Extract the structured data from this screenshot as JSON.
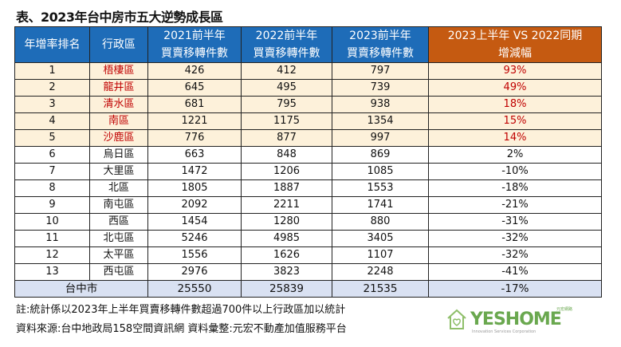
{
  "title": "表、2023年台中房市五大逆勢成長區",
  "headers": {
    "rank": "年增率排名",
    "district": "行政區",
    "y2021": [
      "2021前半年",
      "買賣移轉件數"
    ],
    "y2022": [
      "2022前半年",
      "買賣移轉件數"
    ],
    "y2023": [
      "2023前半年",
      "買賣移轉件數"
    ],
    "change": [
      "2023上半年 VS 2022同期",
      "增減幅"
    ]
  },
  "rows": [
    [
      "1",
      "梧棲區",
      "426",
      "412",
      "797",
      "93%"
    ],
    [
      "2",
      "龍井區",
      "645",
      "495",
      "739",
      "49%"
    ],
    [
      "3",
      "清水區",
      "681",
      "795",
      "938",
      "18%"
    ],
    [
      "4",
      "南區",
      "1221",
      "1175",
      "1354",
      "15%"
    ],
    [
      "5",
      "沙鹿區",
      "776",
      "877",
      "997",
      "14%"
    ],
    [
      "6",
      "烏日區",
      "663",
      "848",
      "869",
      "2%"
    ],
    [
      "7",
      "大里區",
      "1472",
      "1206",
      "1085",
      "-10%"
    ],
    [
      "8",
      "北區",
      "1805",
      "1887",
      "1553",
      "-18%"
    ],
    [
      "9",
      "南屯區",
      "2092",
      "2211",
      "1741",
      "-21%"
    ],
    [
      "10",
      "西區",
      "1454",
      "1280",
      "880",
      "-31%"
    ],
    [
      "11",
      "北屯區",
      "5246",
      "4985",
      "3405",
      "-32%"
    ],
    [
      "12",
      "太平區",
      "1556",
      "1626",
      "1107",
      "-32%"
    ],
    [
      "13",
      "西屯區",
      "2976",
      "3823",
      "2248",
      "-41%"
    ]
  ],
  "total": {
    "label": "台中市",
    "y2021": "25550",
    "y2022": "25839",
    "y2023": "21535",
    "change": "-17%"
  },
  "notes": [
    "註:統計係以2023年上半年買賣移轉件數超過700件以上行政區加以統計",
    "資料來源:台中地政局158空間資訊網  資料彙整:元宏不動產加值服務平台"
  ],
  "logo": {
    "name": "YESHOME",
    "tagline": "元宏網路",
    "sub": "Innovation Services Corporation"
  },
  "colors": {
    "header": "#1e6cb8",
    "header_accent": "#c55a11",
    "highlight_row": "#fdf1da",
    "highlight_text": "#c00000",
    "total_row": "#d9e1f2"
  }
}
